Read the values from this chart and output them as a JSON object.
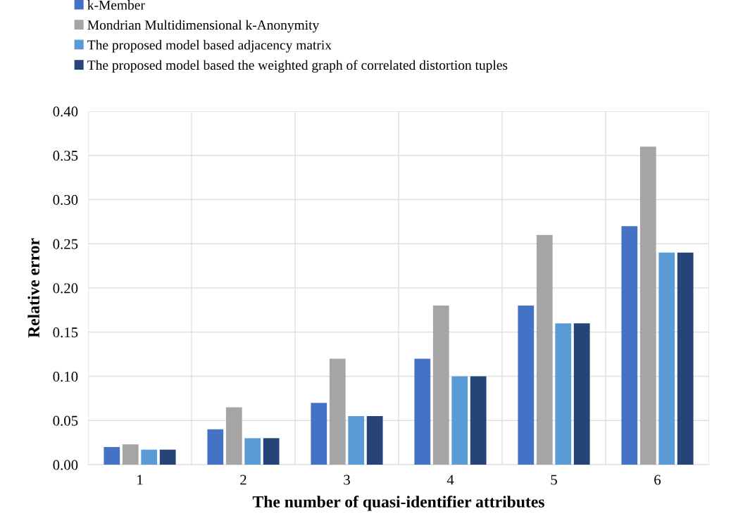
{
  "chart_data": {
    "type": "bar",
    "xlabel": "The number of quasi-identifier attributes",
    "ylabel": "Relative error",
    "categories": [
      "1",
      "2",
      "3",
      "4",
      "5",
      "6"
    ],
    "series": [
      {
        "name": "k-Member",
        "color": "#4472c4",
        "values": [
          0.02,
          0.04,
          0.07,
          0.12,
          0.18,
          0.27
        ]
      },
      {
        "name": "Mondrian Multidimensional k-Anonymity",
        "color": "#a5a5a5",
        "values": [
          0.023,
          0.065,
          0.12,
          0.18,
          0.26,
          0.36
        ]
      },
      {
        "name": "The proposed model based adjacency matrix",
        "color": "#5b9bd5",
        "values": [
          0.017,
          0.03,
          0.055,
          0.1,
          0.16,
          0.24
        ]
      },
      {
        "name": "The proposed model based the weighted graph of correlated distortion tuples",
        "color": "#264478",
        "values": [
          0.017,
          0.03,
          0.055,
          0.1,
          0.16,
          0.24
        ]
      }
    ],
    "ylim": [
      0,
      0.4
    ],
    "yticks": [
      {
        "value": 0,
        "label": "0.00"
      },
      {
        "value": 0.05,
        "label": "0.05"
      },
      {
        "value": 0.1,
        "label": "0.10"
      },
      {
        "value": 0.15,
        "label": "0.15"
      },
      {
        "value": 0.2,
        "label": "0.20"
      },
      {
        "value": 0.25,
        "label": "0.25"
      },
      {
        "value": 0.3,
        "label": "0.30"
      },
      {
        "value": 0.35,
        "label": "0.35"
      },
      {
        "value": 0.4,
        "label": "0.40"
      }
    ],
    "grid": true,
    "legend": "top left"
  }
}
